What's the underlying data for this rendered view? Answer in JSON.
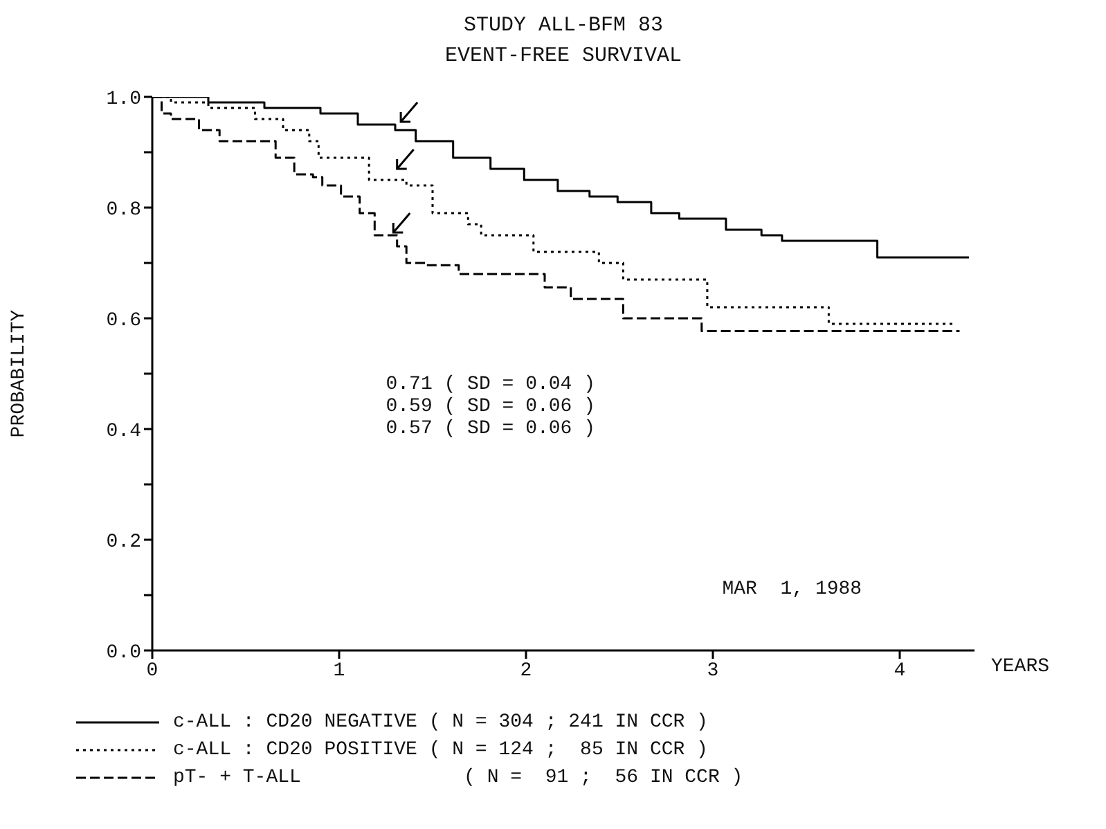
{
  "chart_data": {
    "type": "step",
    "title": "STUDY ALL-BFM 83",
    "subtitle": "EVENT-FREE SURVIVAL",
    "xlabel": "YEARS",
    "ylabel": "PROBABILITY",
    "xlim": [
      0,
      4.4
    ],
    "xticks": [
      0,
      1,
      2,
      3,
      4
    ],
    "ylim": [
      0,
      1
    ],
    "yticks": [
      {
        "value": 0,
        "label": "0.0"
      },
      {
        "value": 0.1,
        "label": null
      },
      {
        "value": 0.2,
        "label": "0.2"
      },
      {
        "value": 0.3,
        "label": null
      },
      {
        "value": 0.4,
        "label": "0.4"
      },
      {
        "value": 0.5,
        "label": null
      },
      {
        "value": 0.6,
        "label": "0.6"
      },
      {
        "value": 0.7,
        "label": null
      },
      {
        "value": 0.8,
        "label": "0.8"
      },
      {
        "value": 0.9,
        "label": null
      },
      {
        "value": 1,
        "label": "1.0"
      }
    ],
    "grid": false,
    "legend": "bottom",
    "marker": "none",
    "series": [
      {
        "name": "c-ALL : CD20 NEGATIVE ( N = 304 ; 241 IN CCR )",
        "color": "#000000",
        "line_style": "solid",
        "x": [
          0,
          0.3,
          0.6,
          0.9,
          1.1,
          1.3,
          1.41,
          1.61,
          1.81,
          1.99,
          2.17,
          2.34,
          2.49,
          2.67,
          2.82,
          3.07,
          3.26,
          3.37,
          3.88,
          4.37
        ],
        "values": [
          1.0,
          0.99,
          0.98,
          0.97,
          0.95,
          0.94,
          0.92,
          0.89,
          0.87,
          0.85,
          0.83,
          0.82,
          0.81,
          0.79,
          0.78,
          0.76,
          0.75,
          0.74,
          0.71,
          0.71
        ]
      },
      {
        "name": "c-ALL : CD20 POSITIVE ( N = 124 ;  85 IN CCR )",
        "color": "#000000",
        "line_style": "dotted",
        "x": [
          0,
          0.1,
          0.3,
          0.55,
          0.7,
          0.84,
          0.89,
          1.16,
          1.36,
          1.5,
          1.69,
          1.76,
          2.04,
          2.39,
          2.52,
          2.97,
          3.62,
          4.29
        ],
        "values": [
          1.0,
          0.99,
          0.98,
          0.96,
          0.94,
          0.92,
          0.89,
          0.85,
          0.84,
          0.79,
          0.77,
          0.75,
          0.72,
          0.7,
          0.67,
          0.62,
          0.59,
          0.59
        ]
      },
      {
        "name": "pT- + T-ALL              ( N =  91 ;  56 IN CCR )",
        "color": "#000000",
        "line_style": "dashed",
        "x": [
          0,
          0.05,
          0.1,
          0.25,
          0.36,
          0.66,
          0.76,
          0.86,
          0.91,
          1.01,
          1.11,
          1.19,
          1.31,
          1.36,
          1.46,
          1.64,
          2.1,
          2.24,
          2.52,
          2.94,
          4.32
        ],
        "values": [
          1.0,
          0.97,
          0.96,
          0.94,
          0.92,
          0.89,
          0.86,
          0.855,
          0.84,
          0.82,
          0.79,
          0.75,
          0.73,
          0.7,
          0.696,
          0.68,
          0.656,
          0.635,
          0.6,
          0.577,
          0.577
        ]
      }
    ],
    "annotations": [
      "0.71 ( SD = 0.04 )",
      "0.59 ( SD = 0.06 )",
      "0.57 ( SD = 0.06 )",
      "MAR  1, 1988"
    ]
  }
}
